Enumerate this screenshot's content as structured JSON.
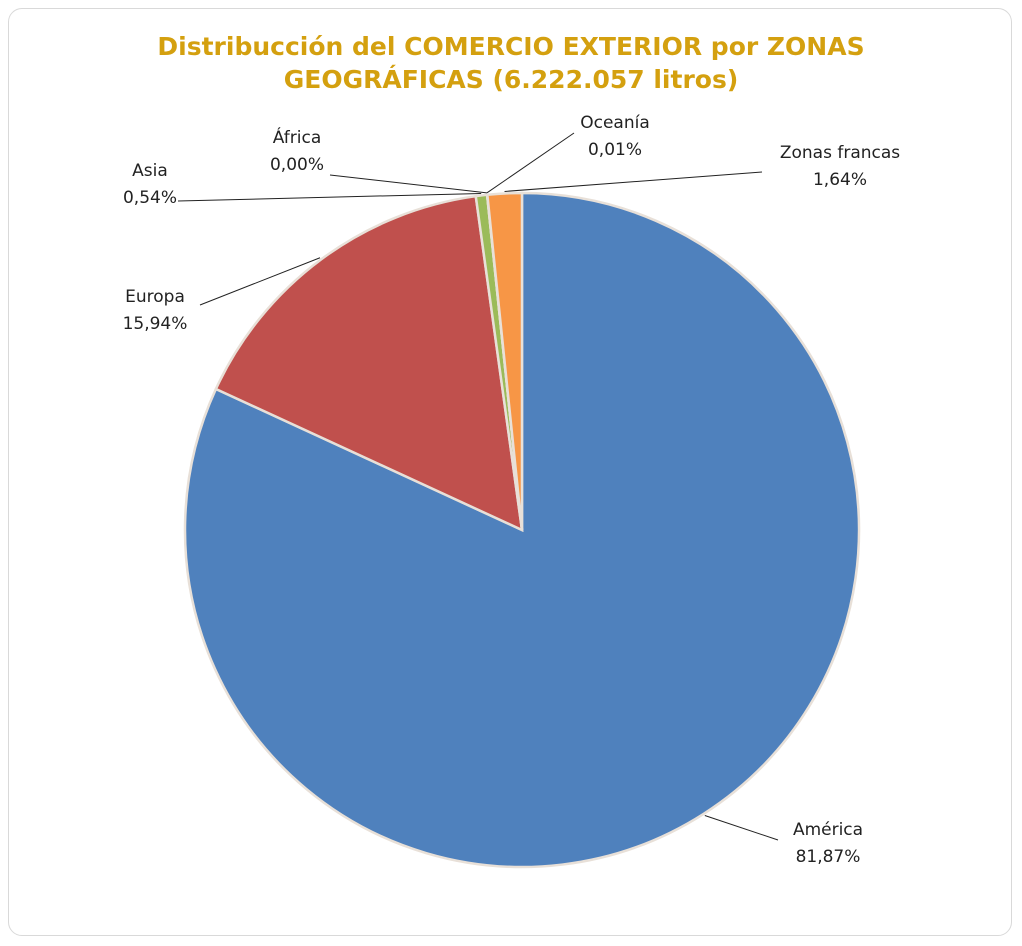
{
  "chart_data": {
    "type": "pie",
    "title": "Distribucción del COMERCIO EXTERIOR por ZONAS GEOGRÁFICAS (6.222.057 litros)",
    "categories": [
      "América",
      "Europa",
      "Asia",
      "África",
      "Oceanía",
      "Zonas francas"
    ],
    "values": [
      81.87,
      15.94,
      0.54,
      0.0,
      0.01,
      1.64
    ],
    "value_labels": [
      "81,87%",
      "15,94%",
      "0,54%",
      "0,00%",
      "0,01%",
      "1,64%"
    ],
    "colors": [
      "#4f81bd",
      "#c0504d",
      "#9bbb59",
      "#8064a2",
      "#4bacc6",
      "#f79646"
    ]
  }
}
